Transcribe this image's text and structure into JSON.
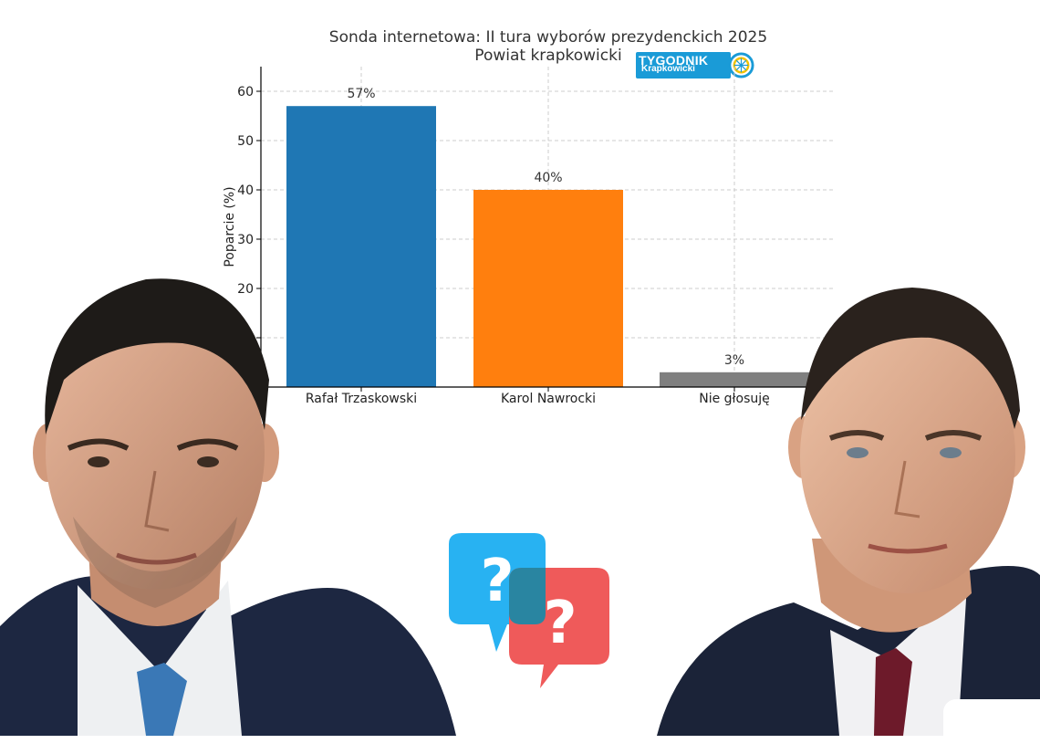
{
  "chart_data": {
    "type": "bar",
    "title": "Sonda internetowa: II tura wyborów prezydenckich 2025",
    "subtitle": "Powiat krapkowicki",
    "ylabel": "Poparcie (%)",
    "xlabel": "",
    "categories": [
      "Rafał Trzaskowski",
      "Karol Nawrocki",
      "Nie głosuję"
    ],
    "values": [
      57,
      40,
      3
    ],
    "value_labels": [
      "57%",
      "40%",
      "3%"
    ],
    "colors": [
      "#1f77b4",
      "#ff7f0e",
      "#7f7f7f"
    ],
    "ylim": [
      0,
      65
    ],
    "yticks": [
      10,
      20,
      30,
      40,
      50,
      60
    ],
    "grid": true
  },
  "logo": {
    "main": "TYGODNIK",
    "sub": "Krapkowicki"
  },
  "icons": {
    "bubble_left": "question-bubble-icon",
    "bubble_right": "question-bubble-icon"
  }
}
